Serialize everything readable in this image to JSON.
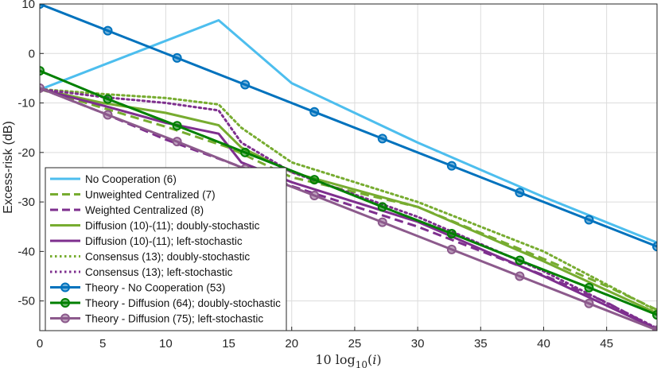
{
  "chart_data": {
    "type": "line",
    "title": "",
    "xlabel": "10 log10(i)",
    "ylabel": "Excess-risk (dB)",
    "xlim": [
      0,
      49
    ],
    "ylim": [
      -56,
      10
    ],
    "xticks": [
      "0",
      "5",
      "10",
      "15",
      "20",
      "25",
      "30",
      "35",
      "40",
      "45"
    ],
    "yticks": [
      "10",
      "0",
      "-10",
      "-20",
      "-30",
      "-40",
      "-50"
    ],
    "xtick_values": [
      0,
      5,
      10,
      15,
      20,
      25,
      30,
      35,
      40,
      45
    ],
    "ytick_values": [
      10,
      0,
      -10,
      -20,
      -30,
      -40,
      -50
    ],
    "grid": true,
    "legend_position": "bottom-left",
    "series": [
      {
        "name": "No Cooperation (6)",
        "color": "#4DBEEE",
        "dash": "solid",
        "marker": false,
        "points": [
          [
            0,
            -7.3
          ],
          [
            14.2,
            6.7
          ],
          [
            20,
            -6
          ],
          [
            30,
            -18
          ],
          [
            40,
            -29
          ],
          [
            49,
            -38.2
          ]
        ]
      },
      {
        "name": "Unweighted Centralized (7)",
        "color": "#77AC30",
        "dash": "dashed",
        "marker": false,
        "points": [
          [
            0,
            -7.2
          ],
          [
            5,
            -11
          ],
          [
            10,
            -14.8
          ],
          [
            15,
            -19
          ],
          [
            20,
            -25
          ],
          [
            30,
            -31
          ],
          [
            40,
            -41.5
          ],
          [
            45,
            -47
          ],
          [
            49,
            -51.8
          ]
        ]
      },
      {
        "name": "Weighted Centralized (8)",
        "color": "#7E2F8E",
        "dash": "dashed",
        "marker": false,
        "points": [
          [
            0,
            -7
          ],
          [
            5,
            -12
          ],
          [
            10,
            -17.4
          ],
          [
            15,
            -22
          ],
          [
            20,
            -26.8
          ],
          [
            30,
            -35
          ],
          [
            40,
            -44.8
          ],
          [
            45,
            -50.3
          ],
          [
            49,
            -55.7
          ]
        ]
      },
      {
        "name": "Diffusion (10)-(11); doubly-stochastic",
        "color": "#77AC30",
        "dash": "solid",
        "marker": false,
        "points": [
          [
            0,
            -7.2
          ],
          [
            5,
            -10
          ],
          [
            10,
            -12
          ],
          [
            14.2,
            -14.5
          ],
          [
            16,
            -19
          ],
          [
            20,
            -24
          ],
          [
            30,
            -31
          ],
          [
            40,
            -42
          ],
          [
            49,
            -52.5
          ]
        ]
      },
      {
        "name": "Diffusion (10)-(11); left-stochastic",
        "color": "#7E2F8E",
        "dash": "solid",
        "marker": false,
        "points": [
          [
            0,
            -7.2
          ],
          [
            5,
            -10.5
          ],
          [
            10,
            -14
          ],
          [
            14.2,
            -16.2
          ],
          [
            16,
            -22
          ],
          [
            20,
            -26
          ],
          [
            30,
            -34
          ],
          [
            40,
            -45
          ],
          [
            49,
            -55.7
          ]
        ]
      },
      {
        "name": "Consensus (13); doubly-stochastic",
        "color": "#77AC30",
        "dash": "dotted",
        "marker": false,
        "points": [
          [
            0,
            -7.2
          ],
          [
            5,
            -8.2
          ],
          [
            10,
            -9
          ],
          [
            14.2,
            -10.3
          ],
          [
            16,
            -15
          ],
          [
            20,
            -22
          ],
          [
            30,
            -30
          ],
          [
            40,
            -40
          ],
          [
            49,
            -52
          ]
        ]
      },
      {
        "name": "Consensus (13); left-stochastic",
        "color": "#7E2F8E",
        "dash": "dotted",
        "marker": false,
        "points": [
          [
            0,
            -7.2
          ],
          [
            5,
            -8.8
          ],
          [
            10,
            -10
          ],
          [
            14.2,
            -11.5
          ],
          [
            16,
            -18
          ],
          [
            20,
            -24
          ],
          [
            30,
            -33
          ],
          [
            40,
            -44
          ],
          [
            49,
            -55.5
          ]
        ]
      },
      {
        "name": "Theory - No Cooperation (53)",
        "color": "#0072BD",
        "dash": "solid",
        "marker": true,
        "points": [
          [
            0,
            10
          ],
          [
            5.4,
            4.6
          ],
          [
            10.9,
            -0.9
          ],
          [
            16.3,
            -6.3
          ],
          [
            21.8,
            -11.8
          ],
          [
            27.2,
            -17.2
          ],
          [
            32.7,
            -22.7
          ],
          [
            38.1,
            -28.1
          ],
          [
            43.6,
            -33.6
          ],
          [
            49,
            -39
          ]
        ]
      },
      {
        "name": "Theory - Diffusion (64); doubly-stochastic",
        "color": "#008000",
        "dash": "solid",
        "marker": true,
        "points": [
          [
            0,
            -3.5
          ],
          [
            5.4,
            -9.2
          ],
          [
            10.9,
            -14.6
          ],
          [
            16.3,
            -20
          ],
          [
            21.8,
            -25.5
          ],
          [
            27.2,
            -31
          ],
          [
            32.7,
            -36.4
          ],
          [
            38.1,
            -41.8
          ],
          [
            43.6,
            -47.3
          ],
          [
            49,
            -52.8
          ]
        ]
      },
      {
        "name": "Theory - Diffusion (75); left-stochastic",
        "color": "#8C5A8C",
        "dash": "solid",
        "marker": true,
        "points": [
          [
            0,
            -7
          ],
          [
            5.4,
            -12.4
          ],
          [
            10.9,
            -17.8
          ],
          [
            16.3,
            -23.3
          ],
          [
            21.8,
            -28.7
          ],
          [
            27.2,
            -34.1
          ],
          [
            32.7,
            -39.6
          ],
          [
            38.1,
            -45
          ],
          [
            43.6,
            -50.5
          ],
          [
            49,
            -55.9
          ]
        ]
      }
    ]
  }
}
